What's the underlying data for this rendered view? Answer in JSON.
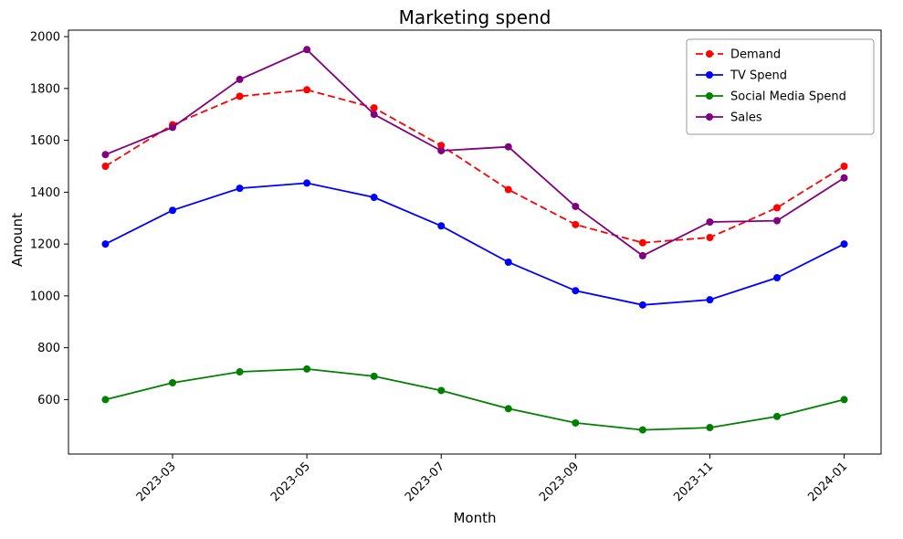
{
  "figure": {
    "title": "Marketing spend",
    "xlabel": "Month",
    "ylabel": "Amount"
  },
  "chart_data": {
    "type": "line",
    "title": "Marketing spend",
    "xlabel": "Month",
    "ylabel": "Amount",
    "grid": false,
    "legend_position": "upper right",
    "x": [
      "2023-02",
      "2023-03",
      "2023-04",
      "2023-05",
      "2023-06",
      "2023-07",
      "2023-08",
      "2023-09",
      "2023-10",
      "2023-11",
      "2023-12",
      "2024-01"
    ],
    "xtick_labels": [
      "2023-03",
      "2023-05",
      "2023-07",
      "2023-09",
      "2023-11",
      "2024-01"
    ],
    "ytick_values": [
      600,
      800,
      1000,
      1200,
      1400,
      1600,
      1800,
      2000
    ],
    "ylim": [
      390,
      2025
    ],
    "series": [
      {
        "name": "Demand",
        "color": "#ff0000",
        "dash": "dashed",
        "marker": "circle",
        "values": [
          1500,
          1660,
          1770,
          1795,
          1725,
          1580,
          1410,
          1275,
          1205,
          1225,
          1340,
          1500
        ]
      },
      {
        "name": "TV Spend",
        "color": "#0000ff",
        "dash": "solid",
        "marker": "circle",
        "values": [
          1200,
          1330,
          1415,
          1435,
          1380,
          1270,
          1130,
          1020,
          965,
          985,
          1070,
          1200
        ]
      },
      {
        "name": "Social Media Spend",
        "color": "#008000",
        "dash": "solid",
        "marker": "circle",
        "values": [
          600,
          665,
          707,
          718,
          690,
          635,
          565,
          510,
          483,
          492,
          535,
          600
        ]
      },
      {
        "name": "Sales",
        "color": "#800080",
        "dash": "solid",
        "marker": "circle",
        "values": [
          1545,
          1650,
          1835,
          1950,
          1700,
          1560,
          1575,
          1345,
          1155,
          1285,
          1290,
          1455
        ]
      }
    ]
  }
}
